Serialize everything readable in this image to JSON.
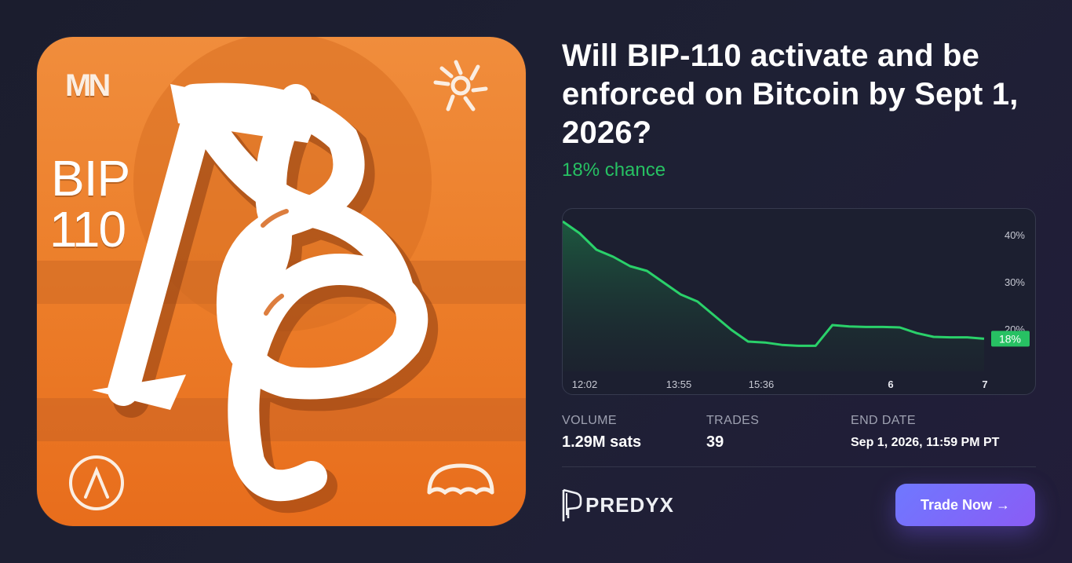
{
  "artwork": {
    "bip_label": "BIP",
    "number_label": "110",
    "mn_logo": "MN",
    "icons": [
      "mn-logo",
      "sunburst-icon",
      "ascent-icon",
      "umbrella-icon",
      "celtic-b-knot"
    ]
  },
  "market": {
    "title": "Will BIP-110 activate and be enforced on Bitcoin by Sept 1, 2026?",
    "chance": "18% chance"
  },
  "stats": {
    "volume_label": "VOLUME",
    "volume_value": "1.29M sats",
    "trades_label": "TRADES",
    "trades_value": "39",
    "end_label": "END DATE",
    "end_value": "Sep 1, 2026, 11:59 PM PT"
  },
  "brand": {
    "name": "PREDYX"
  },
  "actions": {
    "trade_label": "Trade Now →"
  },
  "colors": {
    "accent_green": "#27c163",
    "button_start": "#6f78ff",
    "button_end": "#8a5cf5",
    "art_orange": "#ec7e2a"
  },
  "chart_data": {
    "type": "line",
    "x_ticks": [
      "12:02",
      "13:55",
      "15:36",
      "6",
      "7"
    ],
    "y_ticks": [
      "40%",
      "30%",
      "20%"
    ],
    "ylim": [
      10,
      45
    ],
    "current_label": "18%",
    "series": [
      {
        "values": [
          43,
          40.5,
          37,
          35.5,
          33.5,
          32.5,
          30,
          27.5,
          26,
          23,
          20,
          17.5,
          17.3,
          16.8,
          16.6,
          16.6,
          21,
          20.7,
          20.6,
          20.6,
          20.5,
          19.3,
          18.5,
          18.4,
          18.4,
          18.1
        ]
      }
    ]
  }
}
